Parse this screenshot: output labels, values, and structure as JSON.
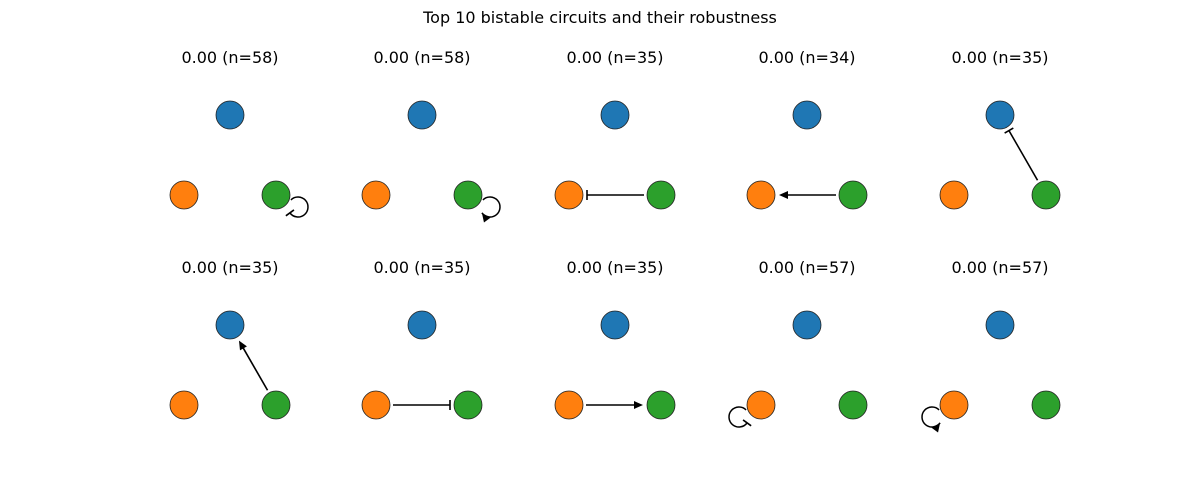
{
  "title": "Top 10 bistable circuits and their robustness",
  "colors": {
    "node_0": "#1f77b4",
    "node_1": "#ff7f0e",
    "node_2": "#2ca02c",
    "edge": "#000000",
    "node_stroke": "#222222"
  },
  "nodes": [
    "node_0",
    "node_1",
    "node_2"
  ],
  "circuits": [
    {
      "label": "0.00 (n=58)",
      "edges": [
        {
          "from": "node_2",
          "to": "node_2",
          "type": "repression"
        }
      ]
    },
    {
      "label": "0.00 (n=58)",
      "edges": [
        {
          "from": "node_2",
          "to": "node_2",
          "type": "activation"
        }
      ]
    },
    {
      "label": "0.00 (n=35)",
      "edges": [
        {
          "from": "node_2",
          "to": "node_1",
          "type": "repression"
        }
      ]
    },
    {
      "label": "0.00 (n=34)",
      "edges": [
        {
          "from": "node_2",
          "to": "node_1",
          "type": "activation"
        }
      ]
    },
    {
      "label": "0.00 (n=35)",
      "edges": [
        {
          "from": "node_2",
          "to": "node_0",
          "type": "repression"
        }
      ]
    },
    {
      "label": "0.00 (n=35)",
      "edges": [
        {
          "from": "node_2",
          "to": "node_0",
          "type": "activation"
        }
      ]
    },
    {
      "label": "0.00 (n=35)",
      "edges": [
        {
          "from": "node_1",
          "to": "node_2",
          "type": "repression"
        }
      ]
    },
    {
      "label": "0.00 (n=35)",
      "edges": [
        {
          "from": "node_1",
          "to": "node_2",
          "type": "activation"
        }
      ]
    },
    {
      "label": "0.00 (n=57)",
      "edges": [
        {
          "from": "node_1",
          "to": "node_1",
          "type": "repression"
        }
      ]
    },
    {
      "label": "0.00 (n=57)",
      "edges": [
        {
          "from": "node_1",
          "to": "node_1",
          "type": "activation"
        }
      ]
    }
  ]
}
